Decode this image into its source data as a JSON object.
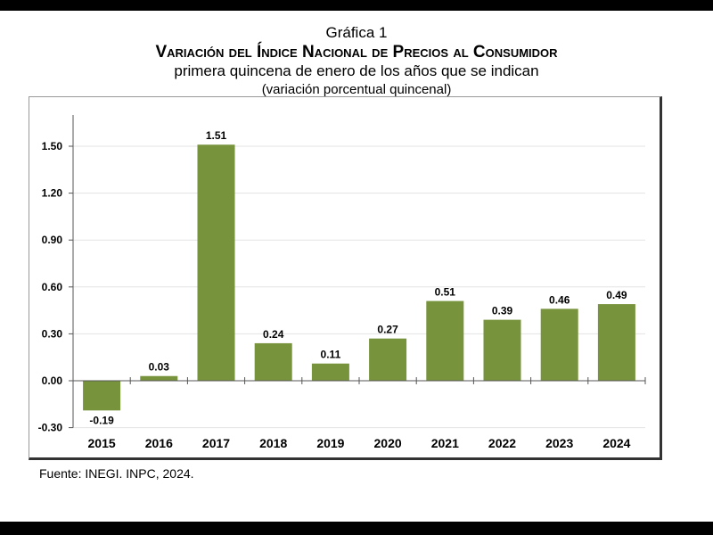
{
  "chart_data": {
    "type": "bar",
    "title": "Gráfica 1",
    "subtitle": "Variación del Índice Nacional de Precios al Consumidor",
    "subtitle2": "primera quincena de enero de los años que se indican",
    "subtitle3": "(variación porcentual quincenal)",
    "categories": [
      "2015",
      "2016",
      "2017",
      "2018",
      "2019",
      "2020",
      "2021",
      "2022",
      "2023",
      "2024"
    ],
    "values": [
      -0.19,
      0.03,
      1.51,
      0.24,
      0.11,
      0.27,
      0.51,
      0.39,
      0.46,
      0.49
    ],
    "data_labels": [
      "-0.19",
      "0.03",
      "1.51",
      "0.24",
      "0.11",
      "0.27",
      "0.51",
      "0.39",
      "0.46",
      "0.49"
    ],
    "yticks": [
      "-0.30",
      "0.00",
      "0.30",
      "0.60",
      "0.90",
      "1.20",
      "1.50"
    ],
    "ylim": [
      -0.3,
      1.5
    ],
    "grid": true,
    "bar_color": "#77933c"
  },
  "source": {
    "label": "Fuente:",
    "org": "INEGI. INPC",
    "year": ", 2024."
  }
}
